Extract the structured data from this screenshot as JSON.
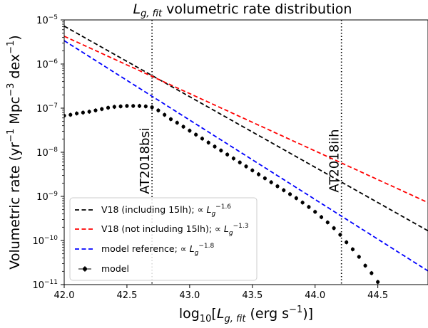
{
  "chart_data": {
    "type": "line",
    "title": "L_{g,fit} volumetric rate distribution",
    "title_main": "L",
    "title_sub": "g, fit",
    "title_rest": " volumetric rate distribution",
    "xlabel_prefix": "log",
    "xlabel_base": "10",
    "xlabel_bracket_open": "[",
    "xlabel_L": "L",
    "xlabel_sub": "g, fit",
    "xlabel_units": " (erg s",
    "xlabel_units_exp": "−1",
    "xlabel_close": ")]",
    "ylabel_text": "Volumetric rate (yr",
    "ylabel_exp1": "−1",
    "ylabel_mid": " Mpc",
    "ylabel_exp2": "−3",
    "ylabel_mid2": " dex",
    "ylabel_exp3": "−1",
    "ylabel_close": ")",
    "xlim": [
      42.0,
      44.9
    ],
    "ylim_log10": [
      -11,
      -5
    ],
    "yscale": "log",
    "grid": false,
    "legend_position": "lower-left",
    "x_ticks": [
      {
        "value": 42.0,
        "label": "42.0"
      },
      {
        "value": 42.5,
        "label": "42.5"
      },
      {
        "value": 43.0,
        "label": "43.0"
      },
      {
        "value": 43.5,
        "label": "43.5"
      },
      {
        "value": 44.0,
        "label": "44.0"
      },
      {
        "value": 44.5,
        "label": "44.5"
      }
    ],
    "y_ticks": [
      {
        "exp": -11,
        "base": "10",
        "sup": "−11"
      },
      {
        "exp": -10,
        "base": "10",
        "sup": "−10"
      },
      {
        "exp": -9,
        "base": "10",
        "sup": "−9"
      },
      {
        "exp": -8,
        "base": "10",
        "sup": "−8"
      },
      {
        "exp": -7,
        "base": "10",
        "sup": "−7"
      },
      {
        "exp": -6,
        "base": "10",
        "sup": "−6"
      },
      {
        "exp": -5,
        "base": "10",
        "sup": "−5"
      }
    ],
    "vertical_lines": [
      {
        "x": 42.7,
        "label": "AT2018bsi"
      },
      {
        "x": 44.21,
        "label": "AT2018iih"
      }
    ],
    "lines": [
      {
        "name": "V18 (including 15lh); ∝",
        "exp_label": "−1.6",
        "color": "#000000",
        "x0": 42.0,
        "log_y0": -5.14,
        "slope": -1.6
      },
      {
        "name": "V18 (not including 15lh); ∝",
        "exp_label": "−1.3",
        "color": "#ff0000",
        "x0": 42.0,
        "log_y0": -5.37,
        "slope": -1.3
      },
      {
        "name": "model reference; ∝",
        "exp_label": "−1.8",
        "color": "#0000ff",
        "x0": 42.0,
        "log_y0": -5.47,
        "slope": -1.8
      }
    ],
    "legend_L": "L",
    "legend_sub": "g",
    "model_series": {
      "name": "model",
      "color": "#000000",
      "x": [
        42.0,
        42.05,
        42.1,
        42.15,
        42.2,
        42.25,
        42.3,
        42.35,
        42.4,
        42.45,
        42.5,
        42.55,
        42.6,
        42.65,
        42.7,
        42.75,
        42.8,
        42.85,
        42.9,
        42.95,
        43.0,
        43.05,
        43.1,
        43.15,
        43.2,
        43.25,
        43.3,
        43.35,
        43.4,
        43.45,
        43.5,
        43.55,
        43.6,
        43.65,
        43.7,
        43.75,
        43.8,
        43.85,
        43.9,
        43.95,
        44.0,
        44.05,
        44.1,
        44.15,
        44.2,
        44.25,
        44.3,
        44.35,
        44.4,
        44.45,
        44.5
      ],
      "log_y": [
        -7.17,
        -7.15,
        -7.12,
        -7.1,
        -7.08,
        -7.05,
        -7.02,
        -6.99,
        -6.97,
        -6.96,
        -6.95,
        -6.95,
        -6.95,
        -6.96,
        -6.98,
        -7.05,
        -7.15,
        -7.25,
        -7.33,
        -7.42,
        -7.51,
        -7.6,
        -7.69,
        -7.78,
        -7.87,
        -7.96,
        -8.05,
        -8.14,
        -8.23,
        -8.32,
        -8.41,
        -8.5,
        -8.59,
        -8.68,
        -8.77,
        -8.86,
        -8.95,
        -9.04,
        -9.14,
        -9.24,
        -9.35,
        -9.47,
        -9.59,
        -9.72,
        -9.87,
        -10.04,
        -10.2,
        -10.37,
        -10.57,
        -10.74,
        -10.94
      ]
    }
  }
}
